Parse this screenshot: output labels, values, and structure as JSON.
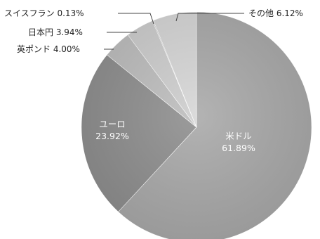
{
  "chart_data": {
    "type": "pie",
    "title": "",
    "start_angle_deg": 0,
    "direction": "clockwise",
    "slices": [
      {
        "label": "米ドル",
        "value": 61.89,
        "value_text": "61.89%",
        "color": "#a9a9a9",
        "label_style": "inside"
      },
      {
        "label": "ユーロ",
        "value": 23.92,
        "value_text": "23.92%",
        "color": "#8e8e8e",
        "label_style": "inside"
      },
      {
        "label": "英ポンド",
        "value": 4.0,
        "value_text": "4.00%",
        "color": "#bdbdbd",
        "label_style": "callout"
      },
      {
        "label": "日本円",
        "value": 3.94,
        "value_text": "3.94%",
        "color": "#cdcdcd",
        "label_style": "callout"
      },
      {
        "label": "スイスフラン",
        "value": 0.13,
        "value_text": "0.13%",
        "color": "#bfbfbf",
        "label_style": "callout"
      },
      {
        "label": "その他",
        "value": 6.12,
        "value_text": "6.12%",
        "color": "#d6d6d6",
        "label_style": "callout"
      }
    ]
  }
}
